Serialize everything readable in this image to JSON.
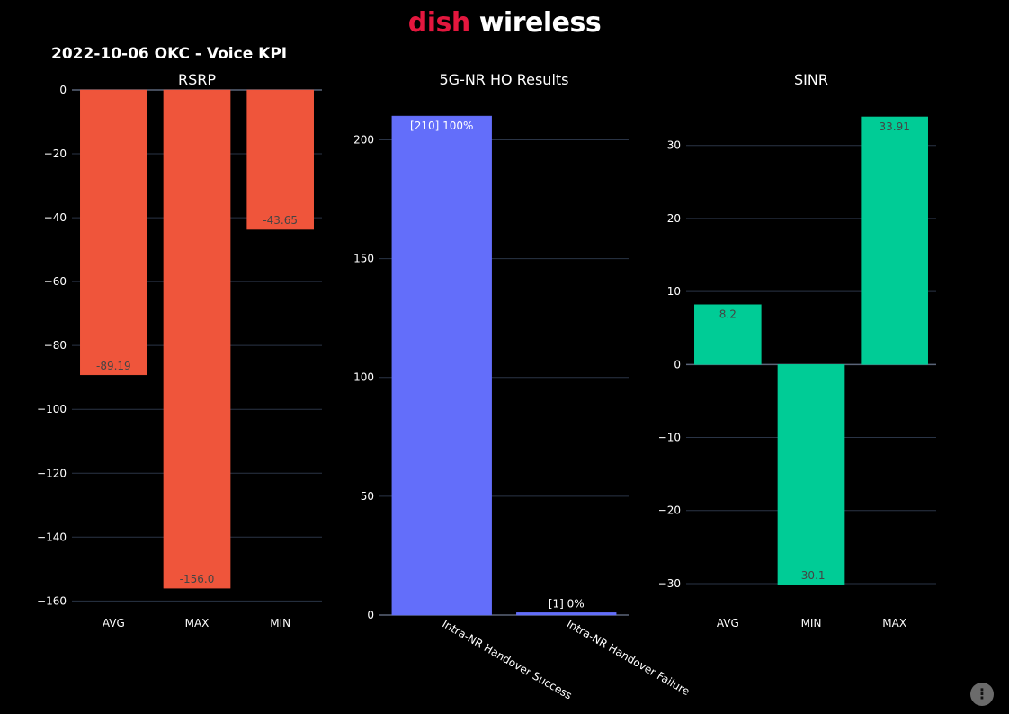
{
  "logo": {
    "brand": "dish",
    "sub": " wireless"
  },
  "page_title": "2022-10-06 OKC - Voice KPI",
  "modebar_icon": "plotly-logo-icon",
  "chart_data": [
    {
      "type": "bar",
      "title": "RSRP",
      "categories": [
        "AVG",
        "MAX",
        "MIN"
      ],
      "values": [
        -89.19,
        -156.0,
        -43.65
      ],
      "labels": [
        "-89.19",
        "-156.0",
        "-43.65"
      ],
      "color": "#ef553b",
      "ylim": [
        -163,
        0
      ],
      "yticks": [
        0,
        -20,
        -40,
        -60,
        -80,
        -100,
        -120,
        -140,
        -160
      ],
      "yticklabels": [
        "0",
        "−20",
        "−40",
        "−60",
        "−80",
        "−100",
        "−120",
        "−140",
        "−160"
      ],
      "grid": true
    },
    {
      "type": "bar",
      "title": "5G-NR HO Results",
      "categories": [
        "Intra-NR Handover Success",
        "Intra-NR Handover Failure"
      ],
      "values": [
        210,
        1
      ],
      "labels": [
        "[210]  100%",
        "[1]  0%"
      ],
      "color": "#636efa",
      "ylim": [
        0,
        221
      ],
      "yticks": [
        0,
        50,
        100,
        150,
        200
      ],
      "yticklabels": [
        "0",
        "50",
        "100",
        "150",
        "200"
      ],
      "grid": true,
      "xtick_rotation": 30
    },
    {
      "type": "bar",
      "title": "SINR",
      "categories": [
        "AVG",
        "MIN",
        "MAX"
      ],
      "values": [
        8.2,
        -30.1,
        33.91
      ],
      "labels": [
        "8.2",
        "-30.1",
        "33.91"
      ],
      "color": "#00cc96",
      "ylim": [
        -33.7,
        37.6
      ],
      "yticks": [
        30,
        20,
        10,
        0,
        -10,
        -20,
        -30
      ],
      "yticklabels": [
        "30",
        "20",
        "10",
        "0",
        "−10",
        "−20",
        "−30"
      ],
      "grid": true
    }
  ]
}
